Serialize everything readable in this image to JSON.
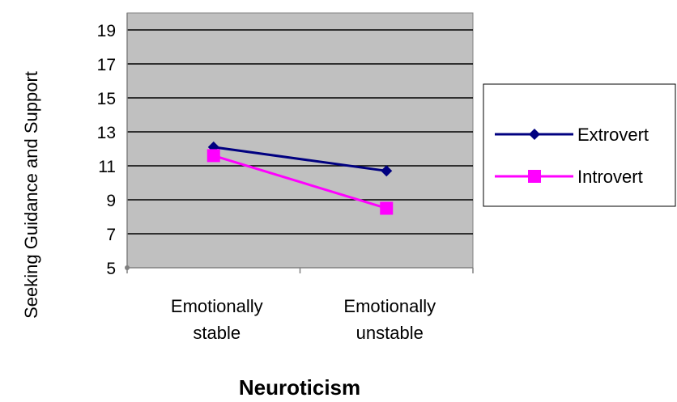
{
  "chart_data": {
    "type": "line",
    "title": "",
    "xlabel": "Neuroticism",
    "ylabel": "Seeking Guidance and Support",
    "categories": [
      [
        "Emotionally",
        "stable"
      ],
      [
        "Emotionally",
        "unstable"
      ]
    ],
    "y_ticks": [
      "5",
      "7",
      "9",
      "11",
      "13",
      "15",
      "17",
      "19"
    ],
    "ylim": [
      5,
      20
    ],
    "grid": true,
    "legend_position": "right",
    "plot_background": "#c0c0c0",
    "series": [
      {
        "name": "Extrovert",
        "values": [
          12.1,
          10.7
        ],
        "color": "#000080",
        "marker": "diamond"
      },
      {
        "name": "Introvert",
        "values": [
          11.6,
          8.5
        ],
        "color": "#ff00ff",
        "marker": "square"
      }
    ]
  }
}
